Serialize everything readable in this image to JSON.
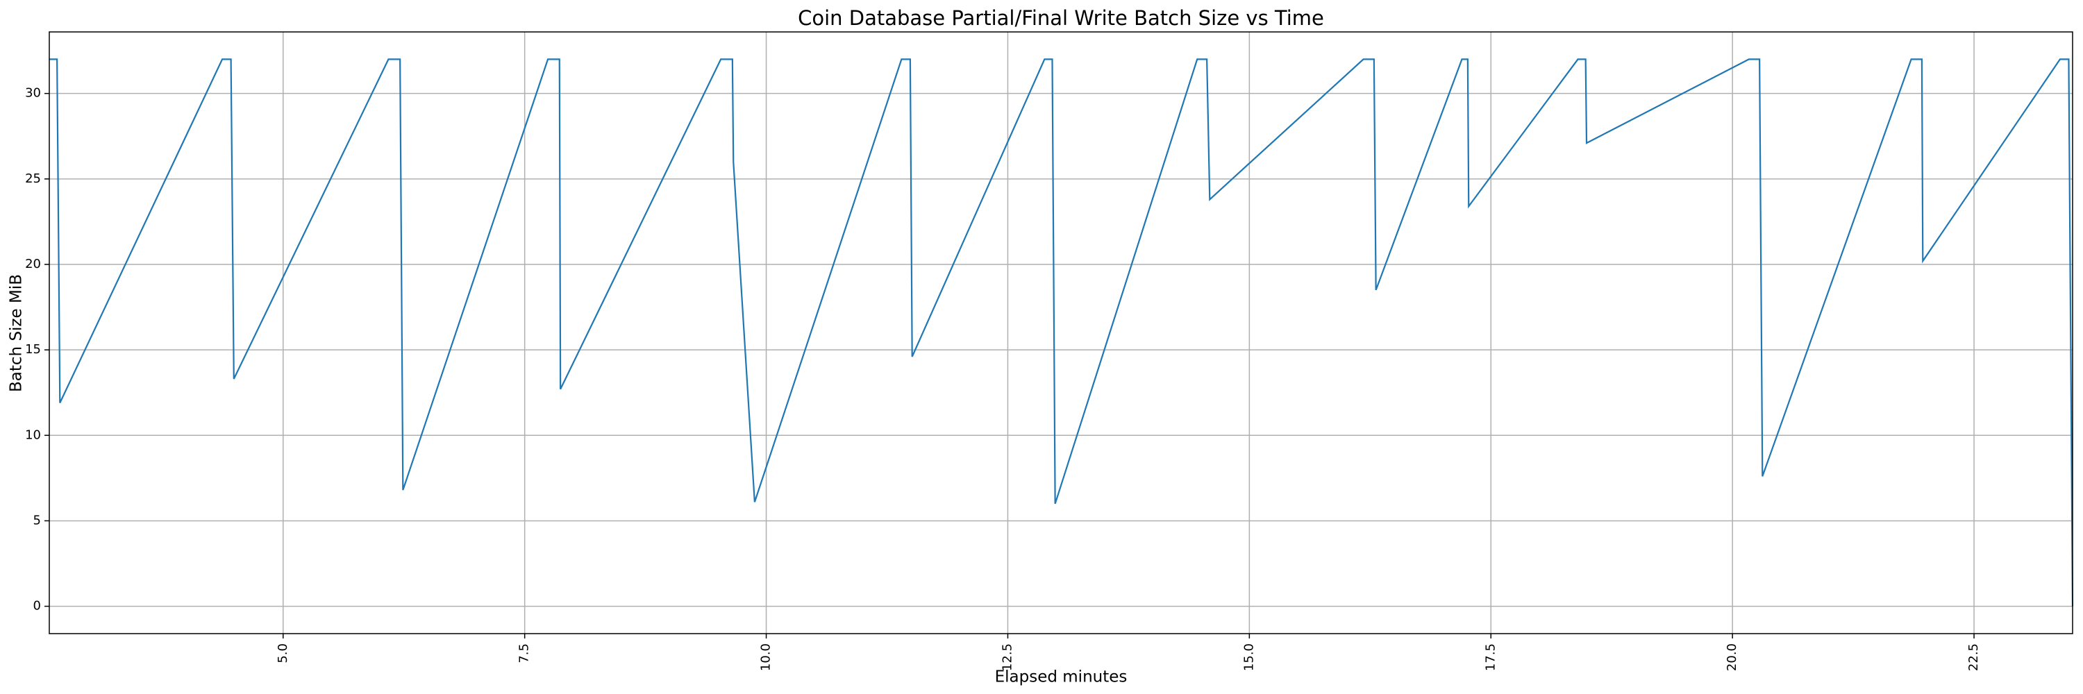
{
  "chart_data": {
    "type": "line",
    "title": "Coin Database Partial/Final Write Batch Size vs Time",
    "x_label": "Elapsed minutes",
    "y_label": "Batch Size MiB",
    "x": [
      2.58,
      2.66,
      2.69,
      4.37,
      4.46,
      4.49,
      6.09,
      6.21,
      6.24,
      7.74,
      7.86,
      7.87,
      9.53,
      9.65,
      9.66,
      9.88,
      11.4,
      11.49,
      11.51,
      12.88,
      12.96,
      12.99,
      14.46,
      14.56,
      14.59,
      16.18,
      16.29,
      16.31,
      17.2,
      17.26,
      17.27,
      18.4,
      18.48,
      18.49,
      20.17,
      20.28,
      20.31,
      21.85,
      21.96,
      21.97,
      23.39,
      23.48,
      23.52
    ],
    "series": [
      {
        "name": "Batch Size MiB",
        "color": "#1f77b4",
        "values": [
          32,
          32,
          11.9,
          32,
          32,
          13.3,
          32,
          32,
          6.8,
          32,
          32,
          12.7,
          32,
          32,
          26,
          6.1,
          32,
          32,
          14.6,
          32,
          32,
          6.0,
          32,
          32,
          23.8,
          32,
          32,
          18.5,
          32,
          32,
          23.4,
          32,
          32,
          27.1,
          32,
          32,
          7.6,
          32,
          32,
          20.2,
          32,
          32,
          0
        ]
      }
    ],
    "xlim": [
      2.58,
      23.52
    ],
    "ylim": [
      -1.6,
      33.6
    ],
    "xticks": [
      {
        "value": 5,
        "label": "5.0"
      },
      {
        "value": 7.5,
        "label": "7.5"
      },
      {
        "value": 10,
        "label": "10.0"
      },
      {
        "value": 12.5,
        "label": "12.5"
      },
      {
        "value": 15,
        "label": "15.0"
      },
      {
        "value": 17.5,
        "label": "17.5"
      },
      {
        "value": 20,
        "label": "20.0"
      },
      {
        "value": 22.5,
        "label": "22.5"
      }
    ],
    "yticks": [
      0,
      5,
      10,
      15,
      20,
      25,
      30
    ],
    "grid": true
  }
}
